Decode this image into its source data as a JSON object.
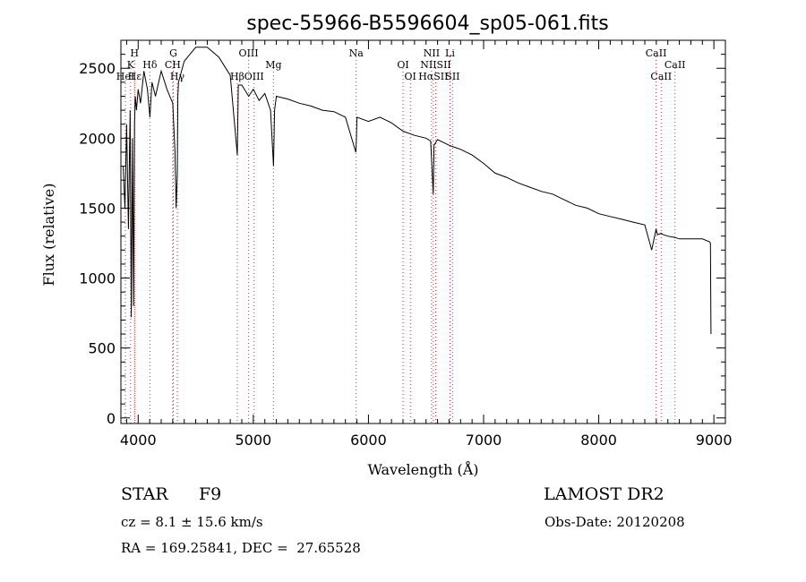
{
  "chart_data": {
    "type": "line",
    "title": "spec-55966-B5596604_sp05-061.fits",
    "xlabel": "Wavelength (Å)",
    "ylabel": "Flux (relative)",
    "xlim": [
      3850,
      9100
    ],
    "ylim": [
      -40,
      2700
    ],
    "xticks": [
      4000,
      5000,
      6000,
      7000,
      8000,
      9000
    ],
    "yticks": [
      0,
      500,
      1000,
      1500,
      2000,
      2500
    ],
    "xtick_labels": [
      "4000",
      "5000",
      "6000",
      "7000",
      "8000",
      "9000"
    ],
    "ytick_labels": [
      "0",
      "500",
      "1000",
      "1500",
      "2000",
      "2500"
    ],
    "line_color": "#000000",
    "marker_color": "#cc3333",
    "series": [
      {
        "name": "spectrum",
        "x": [
          3870,
          3885,
          3900,
          3915,
          3930,
          3940,
          3950,
          3960,
          3968,
          3975,
          3985,
          4000,
          4020,
          4050,
          4080,
          4102,
          4120,
          4150,
          4200,
          4250,
          4300,
          4320,
          4330,
          4340,
          4345,
          4350,
          4400,
          4450,
          4500,
          4600,
          4700,
          4800,
          4861,
          4870,
          4900,
          4960,
          5000,
          5050,
          5100,
          5150,
          5175,
          5185,
          5200,
          5300,
          5400,
          5500,
          5600,
          5700,
          5800,
          5890,
          5895,
          5900,
          6000,
          6100,
          6200,
          6300,
          6400,
          6500,
          6540,
          6563,
          6570,
          6600,
          6700,
          6800,
          6900,
          7000,
          7100,
          7200,
          7300,
          7400,
          7500,
          7600,
          7700,
          7800,
          7900,
          8000,
          8100,
          8200,
          8300,
          8400,
          8460,
          8498,
          8510,
          8542,
          8560,
          8600,
          8662,
          8700,
          8800,
          8900,
          8960,
          8970,
          8975
        ],
        "y": [
          1800,
          1500,
          2100,
          1350,
          2200,
          720,
          2000,
          800,
          2100,
          2300,
          2200,
          2350,
          2250,
          2480,
          2350,
          2150,
          2400,
          2300,
          2480,
          2350,
          2250,
          1900,
          1500,
          1750,
          2300,
          2400,
          2550,
          2600,
          2650,
          2650,
          2580,
          2450,
          1880,
          2380,
          2380,
          2300,
          2350,
          2270,
          2320,
          2200,
          1800,
          2200,
          2300,
          2280,
          2250,
          2230,
          2200,
          2190,
          2150,
          1900,
          1980,
          2150,
          2120,
          2150,
          2110,
          2050,
          2020,
          2000,
          1980,
          1600,
          1950,
          1990,
          1950,
          1920,
          1880,
          1820,
          1750,
          1720,
          1680,
          1650,
          1620,
          1600,
          1560,
          1520,
          1500,
          1460,
          1440,
          1420,
          1400,
          1380,
          1200,
          1350,
          1310,
          1320,
          1310,
          1300,
          1290,
          1280,
          1280,
          1280,
          1260,
          1250,
          600
        ]
      }
    ],
    "markers": [
      {
        "label": "H",
        "wavelength": 3968,
        "row": 0
      },
      {
        "label": "K",
        "wavelength": 3934,
        "row": 1
      },
      {
        "label": "HeI",
        "wavelength": 3889,
        "row": 2
      },
      {
        "label": "Hδ",
        "wavelength": 4102,
        "row": 1
      },
      {
        "label": "Hε",
        "wavelength": 3970,
        "row": 2
      },
      {
        "label": "G",
        "wavelength": 4305,
        "row": 0
      },
      {
        "label": "CH",
        "wavelength": 4300,
        "row": 1
      },
      {
        "label": "Hγ",
        "wavelength": 4340,
        "row": 2
      },
      {
        "label": "OIII",
        "wavelength": 4959,
        "row": 0
      },
      {
        "label": "Hβ",
        "wavelength": 4861,
        "row": 2
      },
      {
        "label": "OIII",
        "wavelength": 5007,
        "row": 2
      },
      {
        "label": "Mg",
        "wavelength": 5175,
        "row": 1
      },
      {
        "label": "Na",
        "wavelength": 5893,
        "row": 0
      },
      {
        "label": "OI",
        "wavelength": 6300,
        "row": 1
      },
      {
        "label": "OI",
        "wavelength": 6364,
        "row": 2
      },
      {
        "label": "NII",
        "wavelength": 6548,
        "row": 0
      },
      {
        "label": "Li",
        "wavelength": 6708,
        "row": 0
      },
      {
        "label": "NIISII",
        "wavelength": 6584,
        "row": 1
      },
      {
        "label": "HαSII",
        "wavelength": 6563,
        "row": 2
      },
      {
        "label": "SII",
        "wavelength": 6731,
        "row": 2
      },
      {
        "label": "CaII",
        "wavelength": 8498,
        "row": 0
      },
      {
        "label": "CaII",
        "wavelength": 8662,
        "row": 1
      },
      {
        "label": "CaII",
        "wavelength": 8542,
        "row": 2
      }
    ]
  },
  "info": {
    "object_type": "STAR",
    "subclass": "F9",
    "survey": "LAMOST DR2",
    "redshift": "cz = 8.1 ± 15.6 km/s",
    "obs_date": "Obs-Date: 20120208",
    "coords": "RA = 169.25841, DEC =  27.65528"
  }
}
